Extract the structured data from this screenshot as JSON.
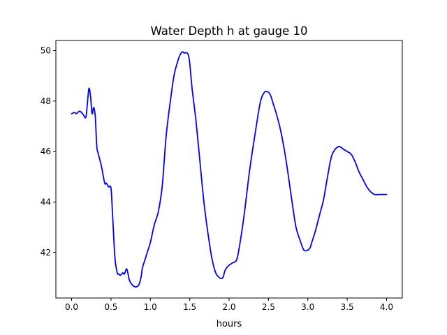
{
  "chart_data": {
    "type": "line",
    "title": "Water Depth h at gauge 10",
    "xlabel": "hours",
    "ylabel": "",
    "xlim": [
      -0.2,
      4.2
    ],
    "ylim": [
      40.2,
      50.4
    ],
    "xticks": [
      0.0,
      0.5,
      1.0,
      1.5,
      2.0,
      2.5,
      3.0,
      3.5,
      4.0
    ],
    "xtick_labels": [
      "0.0",
      "0.5",
      "1.0",
      "1.5",
      "2.0",
      "2.5",
      "3.0",
      "3.5",
      "4.0"
    ],
    "yticks": [
      42,
      44,
      46,
      48,
      50
    ],
    "ytick_labels": [
      "42",
      "44",
      "46",
      "48",
      "50"
    ],
    "grid": false,
    "legend": "none",
    "series": [
      {
        "color": "#0000ff",
        "x": [
          0.0,
          0.04,
          0.06,
          0.1,
          0.14,
          0.18,
          0.2,
          0.22,
          0.24,
          0.26,
          0.28,
          0.3,
          0.32,
          0.34,
          0.38,
          0.42,
          0.44,
          0.47,
          0.5,
          0.52,
          0.55,
          0.58,
          0.6,
          0.62,
          0.65,
          0.67,
          0.7,
          0.73,
          0.75,
          0.8,
          0.85,
          0.88,
          0.9,
          0.93,
          0.96,
          1.0,
          1.05,
          1.1,
          1.15,
          1.2,
          1.25,
          1.3,
          1.35,
          1.38,
          1.41,
          1.43,
          1.45,
          1.48,
          1.5,
          1.53,
          1.58,
          1.63,
          1.68,
          1.73,
          1.78,
          1.83,
          1.88,
          1.92,
          1.95,
          2.0,
          2.05,
          2.1,
          2.15,
          2.2,
          2.25,
          2.3,
          2.35,
          2.4,
          2.45,
          2.5,
          2.53,
          2.56,
          2.6,
          2.65,
          2.7,
          2.75,
          2.8,
          2.85,
          2.9,
          2.95,
          3.0,
          3.03,
          3.05,
          3.1,
          3.15,
          3.2,
          3.25,
          3.3,
          3.35,
          3.4,
          3.45,
          3.5,
          3.55,
          3.6,
          3.65,
          3.7,
          3.75,
          3.8,
          3.85,
          3.9,
          3.95,
          4.0
        ],
        "y": [
          47.5,
          47.55,
          47.5,
          47.6,
          47.5,
          47.35,
          47.9,
          48.5,
          48.2,
          47.5,
          47.75,
          47.4,
          46.2,
          45.9,
          45.4,
          44.75,
          44.75,
          44.6,
          44.55,
          43.5,
          41.8,
          41.2,
          41.15,
          41.1,
          41.2,
          41.15,
          41.35,
          40.95,
          40.8,
          40.65,
          40.7,
          41.0,
          41.4,
          41.7,
          42.0,
          42.4,
          43.1,
          43.6,
          44.6,
          46.6,
          47.9,
          49.0,
          49.6,
          49.85,
          49.95,
          49.9,
          49.92,
          49.85,
          49.5,
          48.5,
          47.2,
          45.6,
          44.0,
          42.8,
          41.8,
          41.2,
          41.0,
          41.0,
          41.3,
          41.5,
          41.6,
          41.75,
          42.6,
          43.7,
          45.0,
          46.1,
          47.1,
          48.0,
          48.35,
          48.35,
          48.2,
          47.9,
          47.5,
          46.9,
          46.1,
          45.1,
          44.0,
          43.0,
          42.5,
          42.1,
          42.1,
          42.2,
          42.4,
          42.9,
          43.5,
          44.1,
          45.0,
          45.8,
          46.1,
          46.2,
          46.1,
          46.0,
          45.9,
          45.6,
          45.2,
          44.9,
          44.6,
          44.4,
          44.3,
          44.3,
          44.3,
          44.3
        ]
      }
    ]
  }
}
